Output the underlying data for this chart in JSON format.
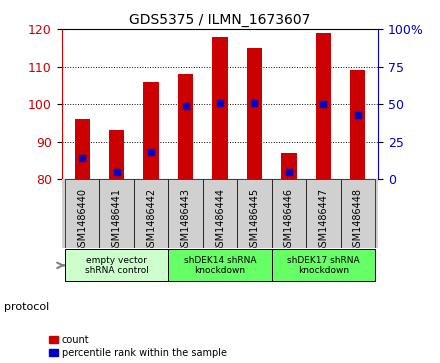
{
  "title": "GDS5375 / ILMN_1673607",
  "samples": [
    "GSM1486440",
    "GSM1486441",
    "GSM1486442",
    "GSM1486443",
    "GSM1486444",
    "GSM1486445",
    "GSM1486446",
    "GSM1486447",
    "GSM1486448"
  ],
  "counts": [
    96,
    93,
    106,
    108,
    118,
    115,
    87,
    119,
    109
  ],
  "percentile_ranks": [
    14,
    5,
    18,
    49,
    51,
    51,
    5,
    50,
    43
  ],
  "ylim_left": [
    80,
    120
  ],
  "ylim_right": [
    0,
    100
  ],
  "yticks_left": [
    80,
    90,
    100,
    110,
    120
  ],
  "yticks_right": [
    0,
    25,
    50,
    75,
    100
  ],
  "groups": [
    {
      "label": "empty vector\nshRNA control",
      "start": 0,
      "end": 3,
      "color": "#ccffcc"
    },
    {
      "label": "shDEK14 shRNA\nknockdown",
      "start": 3,
      "end": 6,
      "color": "#66ff66"
    },
    {
      "label": "shDEK17 shRNA\nknockdown",
      "start": 6,
      "end": 9,
      "color": "#66ff66"
    }
  ],
  "bar_color": "#cc0000",
  "blue_color": "#0000cc",
  "bar_width": 0.45,
  "protocol_label": "protocol",
  "legend_count": "count",
  "legend_percentile": "percentile rank within the sample",
  "tick_area_color": "#d0d0d0",
  "plot_bg": "#ffffff",
  "title_fontsize": 10,
  "tick_fontsize": 7,
  "axis_label_fontsize": 9
}
